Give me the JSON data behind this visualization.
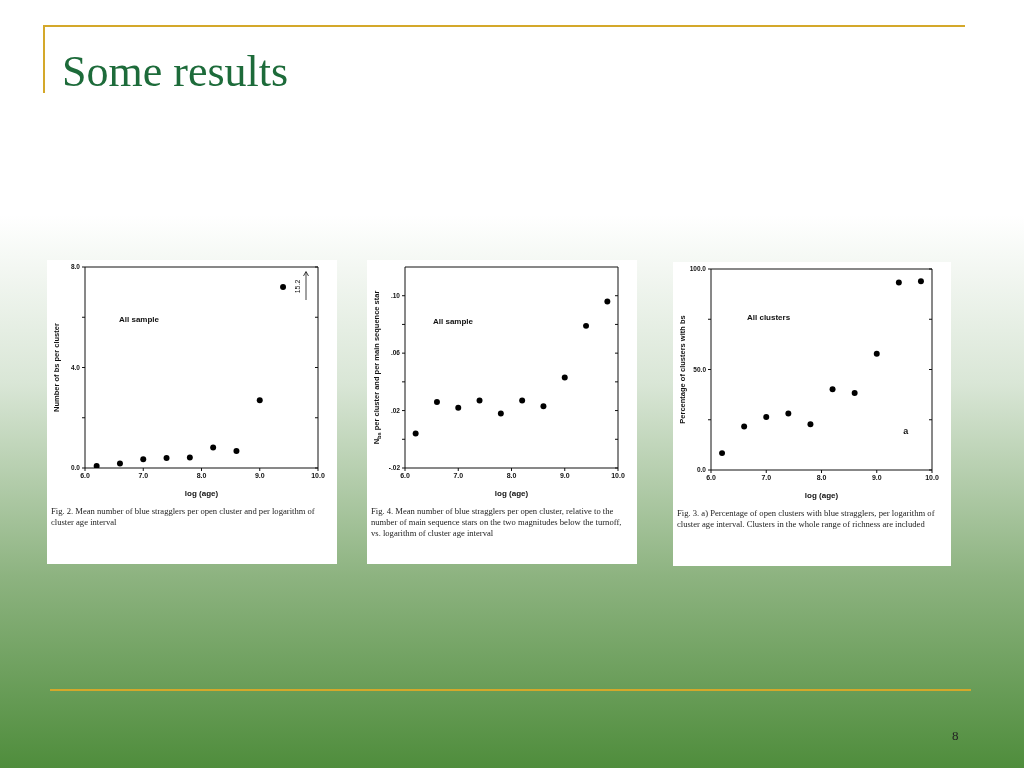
{
  "chart_data": [
    {
      "type": "scatter",
      "title": "Some results",
      "xlabel": "log (age)",
      "ylabel": "Number of bs per cluster",
      "marker": "circle",
      "x": [
        6.2,
        6.6,
        7.0,
        7.4,
        7.8,
        8.2,
        8.6,
        9.0,
        9.4
      ],
      "series": [
        {
          "color": "#000000",
          "values": [
            0.08,
            0.18,
            0.35,
            0.4,
            0.42,
            0.82,
            0.68,
            2.7,
            7.2
          ]
        }
      ],
      "xlim": [
        6,
        10
      ],
      "xticks": [
        {
          "value": 6,
          "label": "6.0"
        },
        {
          "value": 7,
          "label": "7.0"
        },
        {
          "value": 8,
          "label": "8.0"
        },
        {
          "value": 9,
          "label": "9.0"
        },
        {
          "value": 10,
          "label": "10.0"
        }
      ],
      "ylim": [
        0,
        8
      ],
      "yticks": [
        {
          "value": 0,
          "label": "0.0"
        },
        {
          "value": 2,
          "label": null
        },
        {
          "value": 4,
          "label": "4.0"
        },
        {
          "value": 6,
          "label": null
        },
        {
          "value": 8,
          "label": "8.0"
        }
      ],
      "annotations": [
        "All sample",
        "15.2",
        "Fig. 2. Mean number of blue stragglers per open cluster and per logarithm of cluster age interval"
      ]
    },
    {
      "type": "scatter",
      "xlabel": "log (age)",
      "ylabel": "N$_{bs}$ per cluster and per main sequence star",
      "marker": "circle",
      "x": [
        6.2,
        6.6,
        7.0,
        7.4,
        7.8,
        8.2,
        8.6,
        9.0,
        9.4,
        9.8
      ],
      "series": [
        {
          "color": "#000000",
          "values": [
            0.004,
            0.026,
            0.022,
            0.027,
            0.018,
            0.027,
            0.023,
            0.043,
            0.079,
            0.096
          ]
        }
      ],
      "xlim": [
        6,
        10
      ],
      "xticks": [
        {
          "value": 6,
          "label": "6.0"
        },
        {
          "value": 7,
          "label": "7.0"
        },
        {
          "value": 8,
          "label": "8.0"
        },
        {
          "value": 9,
          "label": "9.0"
        },
        {
          "value": 10,
          "label": "10.0"
        }
      ],
      "ylim": [
        -0.02,
        0.12
      ],
      "yticks": [
        {
          "value": -0.02,
          "label": "-.02"
        },
        {
          "value": 0,
          "label": null
        },
        {
          "value": 0.02,
          "label": ".02"
        },
        {
          "value": 0.04,
          "label": null
        },
        {
          "value": 0.06,
          "label": ".06"
        },
        {
          "value": 0.08,
          "label": null
        },
        {
          "value": 0.1,
          "label": ".10"
        }
      ],
      "annotations": [
        "All sample",
        "Fig. 4. Mean number of blue stragglers per open cluster, relative to the number of main sequence stars on the two magnitudes below the turnoff, vs. logarithm of cluster age interval"
      ]
    },
    {
      "type": "scatter",
      "xlabel": "log (age)",
      "ylabel": "Percentage of clusters with bs",
      "marker": "circle",
      "x": [
        6.2,
        6.6,
        7.0,
        7.4,
        7.8,
        8.2,
        8.6,
        9.0,
        9.4,
        9.8
      ],
      "series": [
        {
          "color": "#000000",
          "values": [
            8.4,
            21.6,
            26.4,
            28.1,
            22.8,
            40.2,
            38.3,
            57.8,
            93.3,
            93.9
          ]
        }
      ],
      "xlim": [
        6,
        10
      ],
      "xticks": [
        {
          "value": 6,
          "label": "6.0"
        },
        {
          "value": 7,
          "label": "7.0"
        },
        {
          "value": 8,
          "label": "8.0"
        },
        {
          "value": 9,
          "label": "9.0"
        },
        {
          "value": 10,
          "label": "10.0"
        }
      ],
      "ylim": [
        0,
        100
      ],
      "yticks": [
        {
          "value": 0,
          "label": "0.0"
        },
        {
          "value": 25,
          "label": null
        },
        {
          "value": 50,
          "label": "50.0"
        },
        {
          "value": 75,
          "label": null
        },
        {
          "value": 100,
          "label": "100.0"
        }
      ],
      "annotations": [
        "All clusters",
        "a",
        "Fig. 3. a) Percentage of open clusters with blue stragglers, per logarithm of cluster age interval. Clusters in the whole range of richness are included",
        "8"
      ]
    }
  ]
}
